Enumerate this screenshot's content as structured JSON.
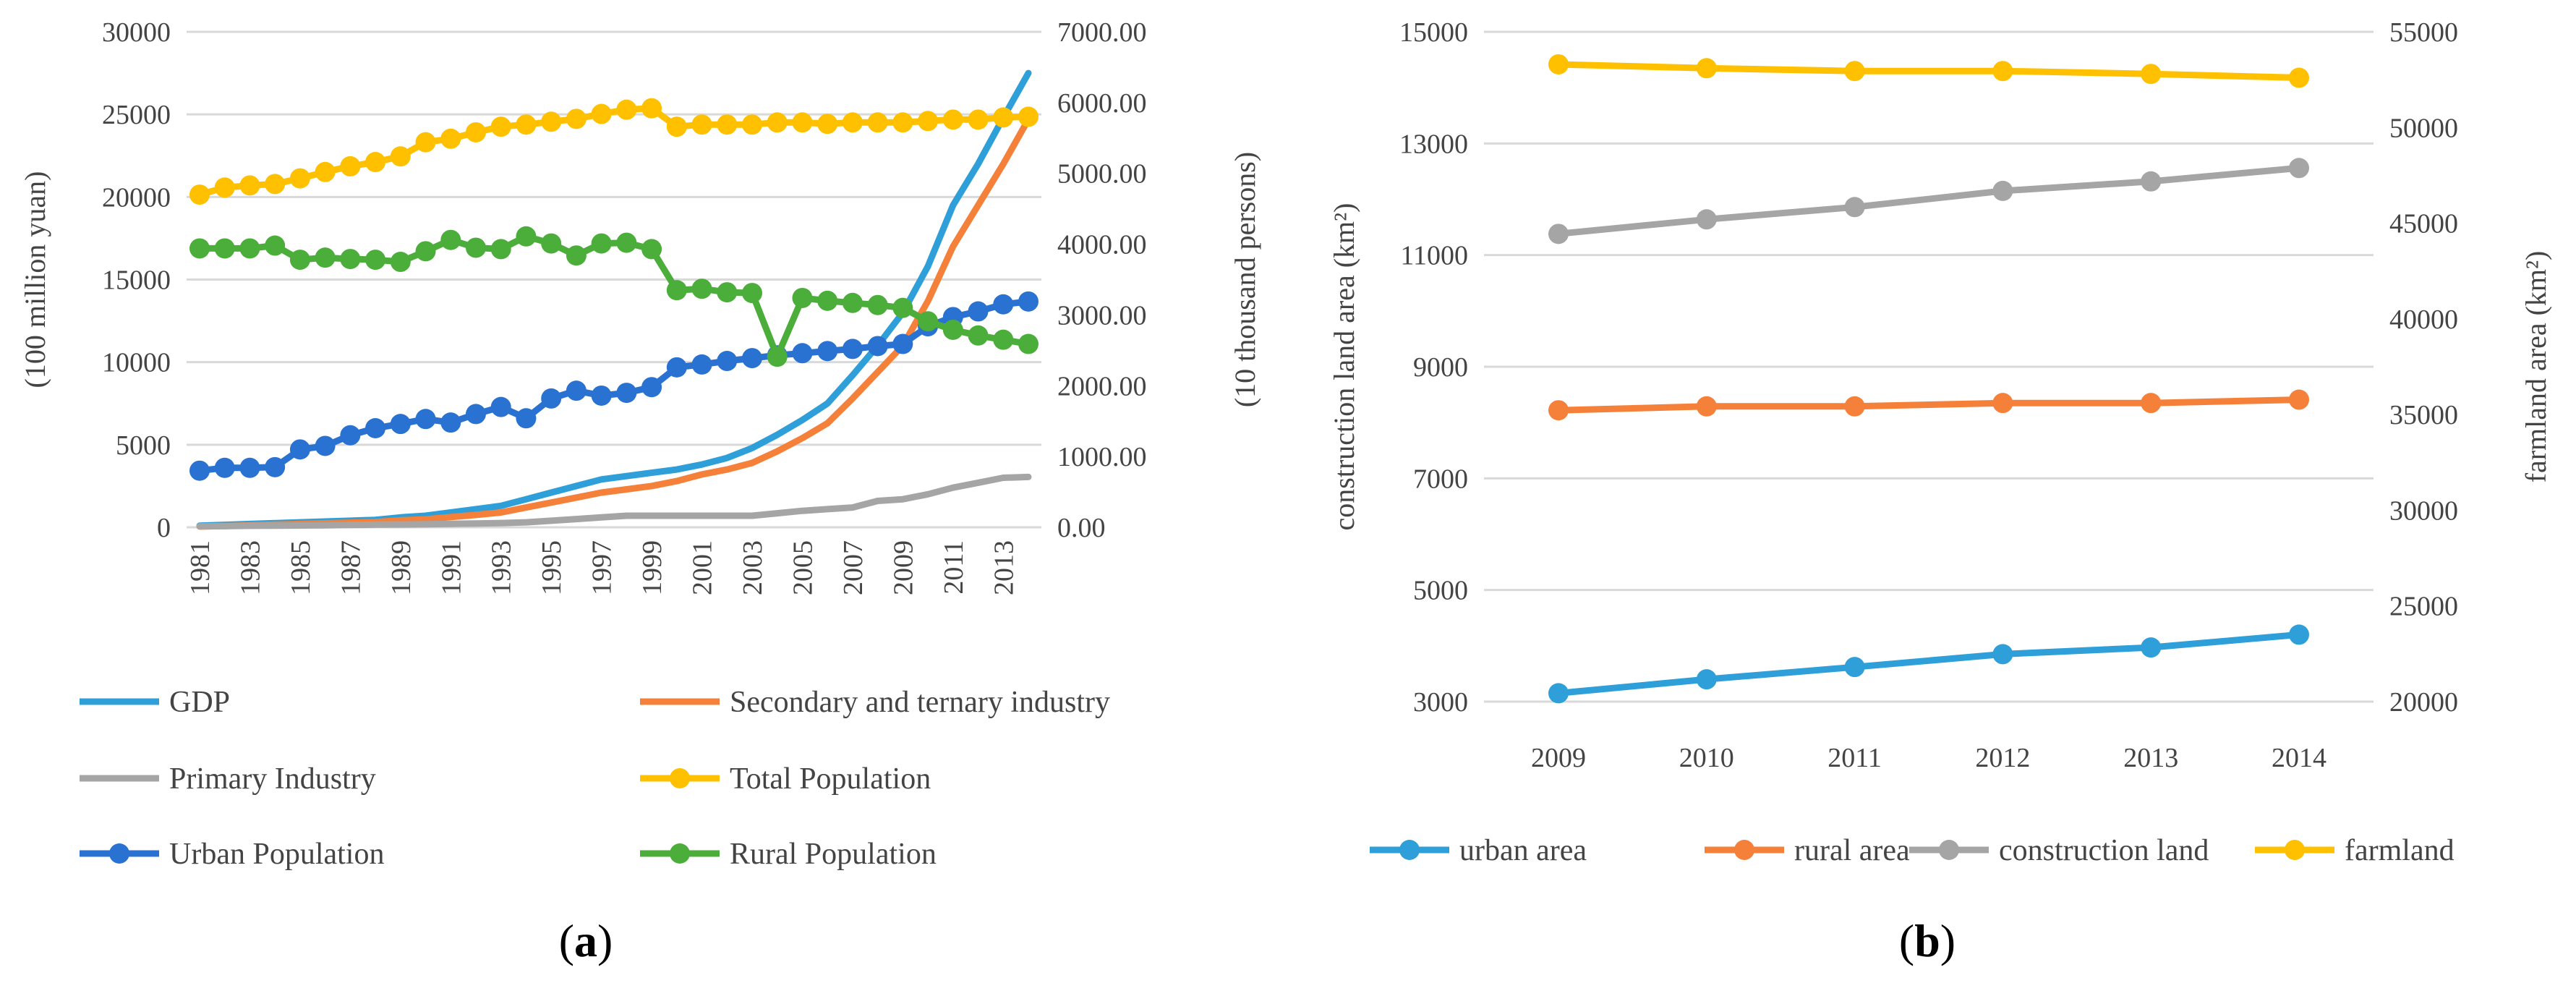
{
  "colors": {
    "gdp": "#2e9fd8",
    "secondary": "#f5803a",
    "primary": "#a5a5a5",
    "total": "#ffc000",
    "urban": "#2a72d1",
    "rural": "#4cae3a",
    "urban_area": "#2e9fd8",
    "rural_area": "#f5803a",
    "construction": "#a5a5a5",
    "farmland": "#ffc000"
  },
  "captions": {
    "a": "a",
    "b": "b"
  },
  "chart_data": [
    {
      "id": "a",
      "type": "line",
      "x": [
        1981,
        1982,
        1983,
        1984,
        1985,
        1986,
        1987,
        1988,
        1989,
        1990,
        1991,
        1992,
        1993,
        1994,
        1995,
        1996,
        1997,
        1998,
        1999,
        2000,
        2001,
        2002,
        2003,
        2004,
        2005,
        2006,
        2007,
        2008,
        2009,
        2010,
        2011,
        2012,
        2013,
        2014
      ],
      "x_tick_labels": [
        "1981",
        "1983",
        "1985",
        "1987",
        "1989",
        "1991",
        "1993",
        "1995",
        "1997",
        "1999",
        "2001",
        "2003",
        "2005",
        "2007",
        "2009",
        "2011",
        "2013"
      ],
      "ylabel": "(100 million yuan)",
      "ylim": [
        0,
        30000
      ],
      "y_ticks": [
        "0",
        "5000",
        "10000",
        "15000",
        "20000",
        "25000",
        "30000"
      ],
      "y2label": "(10 thousand persons)",
      "y2lim": [
        0,
        7000
      ],
      "y2_ticks": [
        "0.00",
        "1000.00",
        "2000.00",
        "3000.00",
        "4000.00",
        "5000.00",
        "6000.00",
        "7000.00"
      ],
      "grid": true,
      "legend_position": "bottom",
      "series": [
        {
          "name": "GDP",
          "axis": "left",
          "markers": false,
          "color_key": "gdp",
          "values": [
            100,
            150,
            200,
            250,
            300,
            350,
            400,
            450,
            600,
            700,
            900,
            1100,
            1300,
            1700,
            2100,
            2500,
            2900,
            3100,
            3300,
            3500,
            3800,
            4200,
            4800,
            5600,
            6500,
            7500,
            9200,
            11000,
            13000,
            15800,
            19500,
            22000,
            24800,
            27500
          ]
        },
        {
          "name": "Secondary and ternary industry",
          "axis": "left",
          "markers": false,
          "color_key": "secondary",
          "values": [
            50,
            80,
            120,
            160,
            200,
            240,
            280,
            320,
            420,
            480,
            620,
            750,
            900,
            1200,
            1500,
            1800,
            2100,
            2300,
            2500,
            2800,
            3200,
            3500,
            3900,
            4600,
            5400,
            6300,
            7800,
            9400,
            11000,
            13700,
            17000,
            19500,
            22000,
            24700
          ]
        },
        {
          "name": "Primary Industry",
          "axis": "left",
          "markers": false,
          "color_key": "primary",
          "values": [
            60,
            70,
            90,
            100,
            110,
            120,
            140,
            160,
            170,
            190,
            210,
            230,
            260,
            300,
            400,
            500,
            600,
            700,
            700,
            700,
            700,
            700,
            700,
            850,
            1000,
            1100,
            1200,
            1600,
            1700,
            2000,
            2400,
            2700,
            3000,
            3050
          ]
        },
        {
          "name": "Total Population",
          "axis": "right",
          "markers": true,
          "color_key": "total",
          "values": [
            4700,
            4800,
            4830,
            4850,
            4930,
            5020,
            5100,
            5160,
            5240,
            5440,
            5490,
            5580,
            5660,
            5690,
            5730,
            5770,
            5840,
            5900,
            5920,
            5660,
            5690,
            5690,
            5690,
            5720,
            5720,
            5700,
            5720,
            5720,
            5720,
            5740,
            5760,
            5760,
            5790,
            5800
          ]
        },
        {
          "name": "Urban  Population",
          "axis": "right",
          "markers": true,
          "color_key": "urban",
          "values": [
            800,
            840,
            840,
            850,
            1100,
            1150,
            1300,
            1400,
            1460,
            1530,
            1480,
            1600,
            1700,
            1540,
            1820,
            1930,
            1860,
            1900,
            1980,
            2260,
            2300,
            2350,
            2390,
            2430,
            2460,
            2490,
            2520,
            2560,
            2590,
            2840,
            2970,
            3050,
            3150,
            3190
          ]
        },
        {
          "name": "Rural Population",
          "axis": "right",
          "markers": true,
          "color_key": "rural",
          "values": [
            3940,
            3940,
            3940,
            3980,
            3780,
            3810,
            3790,
            3780,
            3750,
            3900,
            4060,
            3950,
            3930,
            4110,
            4010,
            3840,
            4010,
            4020,
            3930,
            3350,
            3370,
            3320,
            3310,
            2410,
            3240,
            3200,
            3170,
            3140,
            3100,
            2910,
            2790,
            2710,
            2650,
            2590
          ]
        }
      ]
    },
    {
      "id": "b",
      "type": "line",
      "categories": [
        "2009",
        "2010",
        "2011",
        "2012",
        "2013",
        "2014"
      ],
      "ylabel": "construction land area (km²)",
      "ylim": [
        3000,
        15000
      ],
      "y_ticks": [
        "3000",
        "5000",
        "7000",
        "9000",
        "11000",
        "13000",
        "15000"
      ],
      "y2label": "farmland area (km²)",
      "y2lim": [
        20000,
        55000
      ],
      "y2_ticks": [
        "20000",
        "25000",
        "30000",
        "35000",
        "40000",
        "45000",
        "50000",
        "55000"
      ],
      "grid": true,
      "legend_position": "bottom",
      "series": [
        {
          "name": "urban area",
          "axis": "left",
          "markers": true,
          "color_key": "urban_area",
          "values": [
            3150,
            3400,
            3620,
            3850,
            3970,
            4200
          ]
        },
        {
          "name": "rural area",
          "axis": "left",
          "markers": true,
          "color_key": "rural_area",
          "values": [
            8220,
            8290,
            8290,
            8350,
            8350,
            8410
          ]
        },
        {
          "name": "construction land",
          "axis": "left",
          "markers": true,
          "color_key": "construction",
          "values": [
            11380,
            11640,
            11860,
            12150,
            12320,
            12560
          ]
        },
        {
          "name": "farmland",
          "axis": "right",
          "markers": true,
          "color_key": "farmland",
          "values": [
            53300,
            53100,
            52950,
            52950,
            52800,
            52600
          ]
        }
      ]
    }
  ]
}
